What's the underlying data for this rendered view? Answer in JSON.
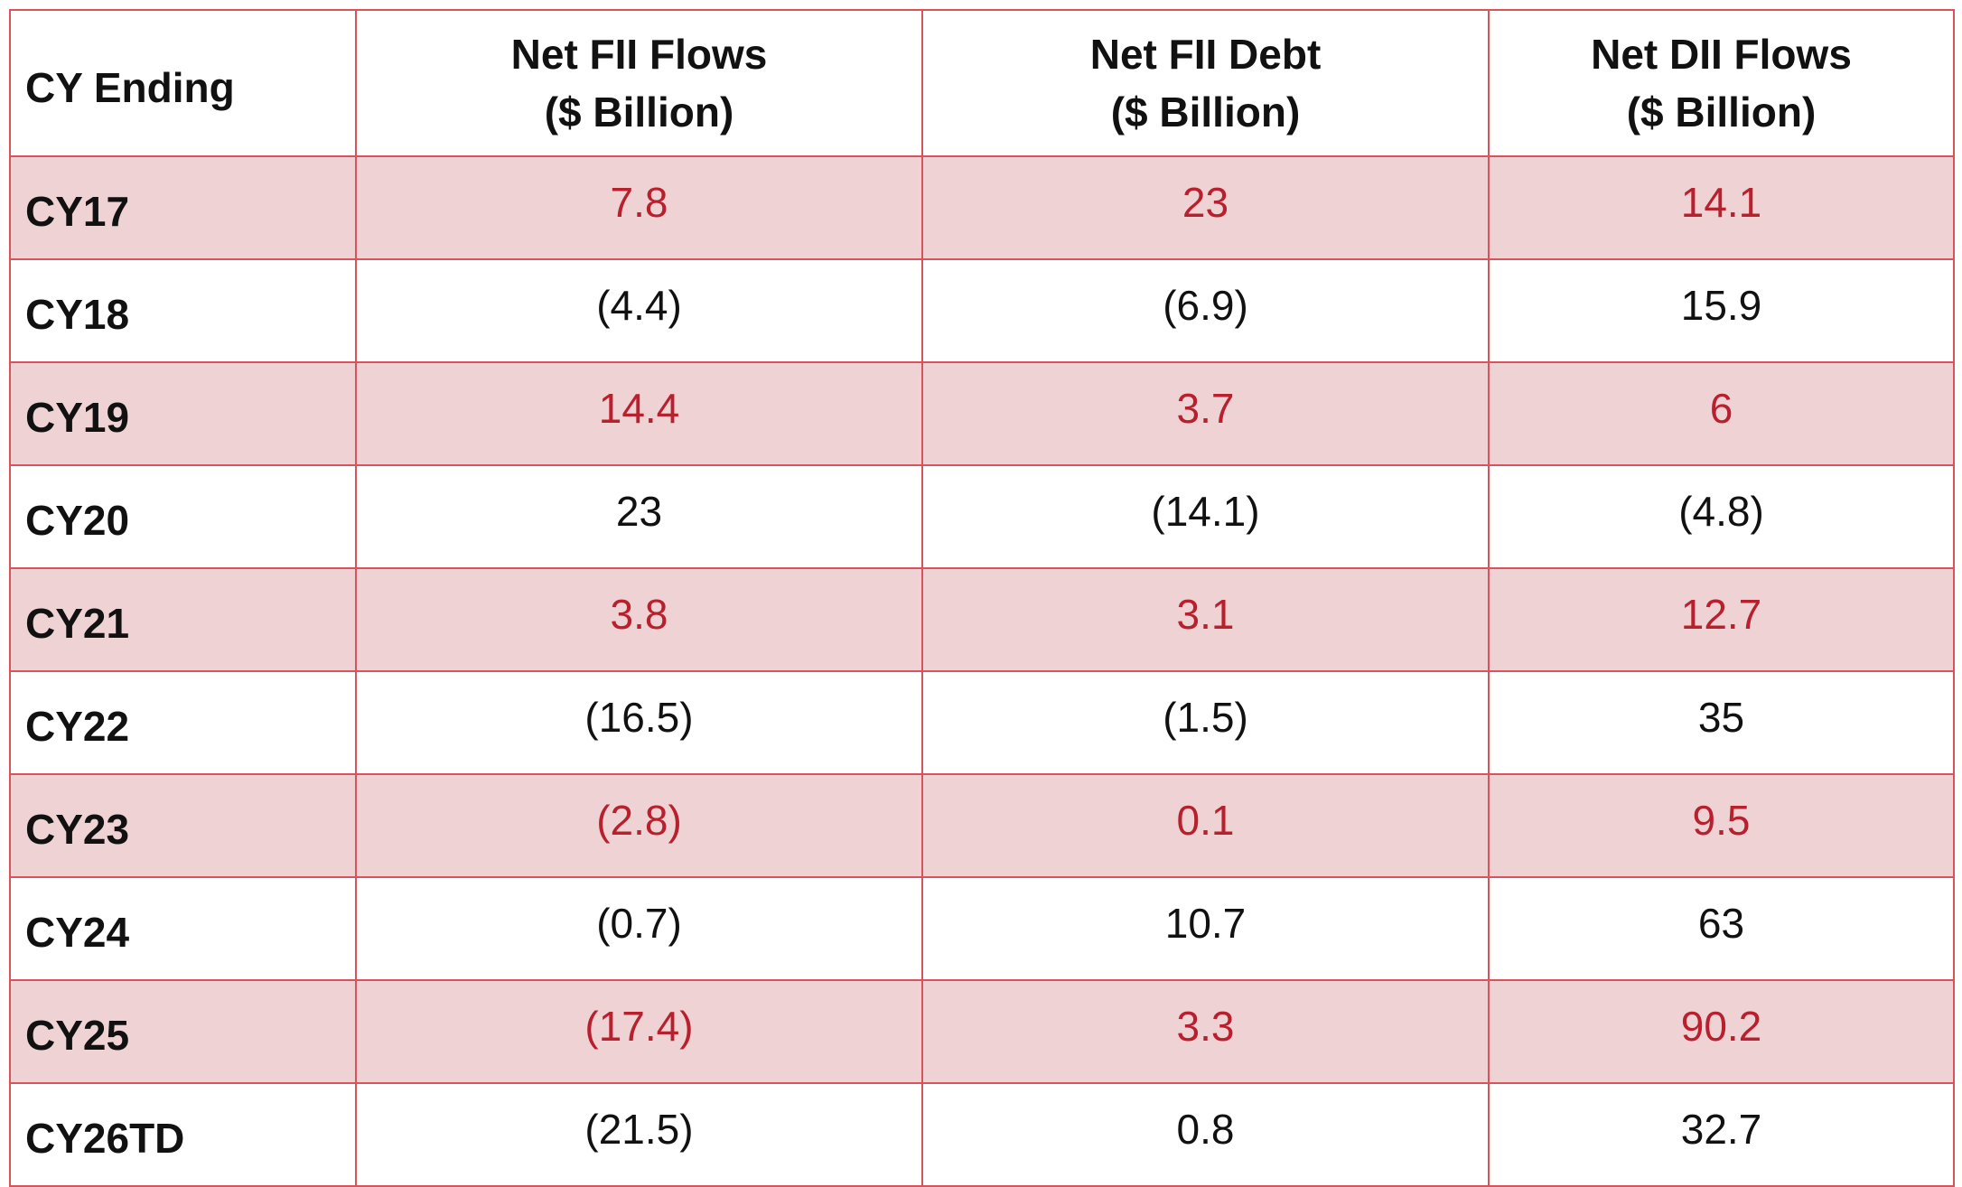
{
  "colors": {
    "border": "#d9535c",
    "shaded_row_bg": "#efd3d4",
    "shaded_row_text": "#b8202e",
    "text": "#111111"
  },
  "table": {
    "headers": [
      {
        "line1": "CY Ending",
        "line2": ""
      },
      {
        "line1": "Net FII Flows",
        "line2": "($ Billion)"
      },
      {
        "line1": "Net FII Debt",
        "line2": "($ Billion)"
      },
      {
        "line1": "Net DII Flows",
        "line2": "($ Billion)"
      }
    ],
    "rows": [
      {
        "label": "CY17",
        "fii_flows": "7.8",
        "fii_debt": "23",
        "dii_flows": "14.1"
      },
      {
        "label": "CY18",
        "fii_flows": "(4.4)",
        "fii_debt": "(6.9)",
        "dii_flows": "15.9"
      },
      {
        "label": "CY19",
        "fii_flows": "14.4",
        "fii_debt": "3.7",
        "dii_flows": "6"
      },
      {
        "label": "CY20",
        "fii_flows": "23",
        "fii_debt": "(14.1)",
        "dii_flows": "(4.8)"
      },
      {
        "label": "CY21",
        "fii_flows": "3.8",
        "fii_debt": "3.1",
        "dii_flows": "12.7"
      },
      {
        "label": "CY22",
        "fii_flows": "(16.5)",
        "fii_debt": "(1.5)",
        "dii_flows": "35"
      },
      {
        "label": "CY23",
        "fii_flows": "(2.8)",
        "fii_debt": "0.1",
        "dii_flows": "9.5"
      },
      {
        "label": "CY24",
        "fii_flows": "(0.7)",
        "fii_debt": "10.7",
        "dii_flows": "63"
      },
      {
        "label": "CY25",
        "fii_flows": "(17.4)",
        "fii_debt": "3.3",
        "dii_flows": "90.2"
      },
      {
        "label": "CY26TD",
        "fii_flows": "(21.5)",
        "fii_debt": "0.8",
        "dii_flows": "32.7"
      }
    ]
  }
}
